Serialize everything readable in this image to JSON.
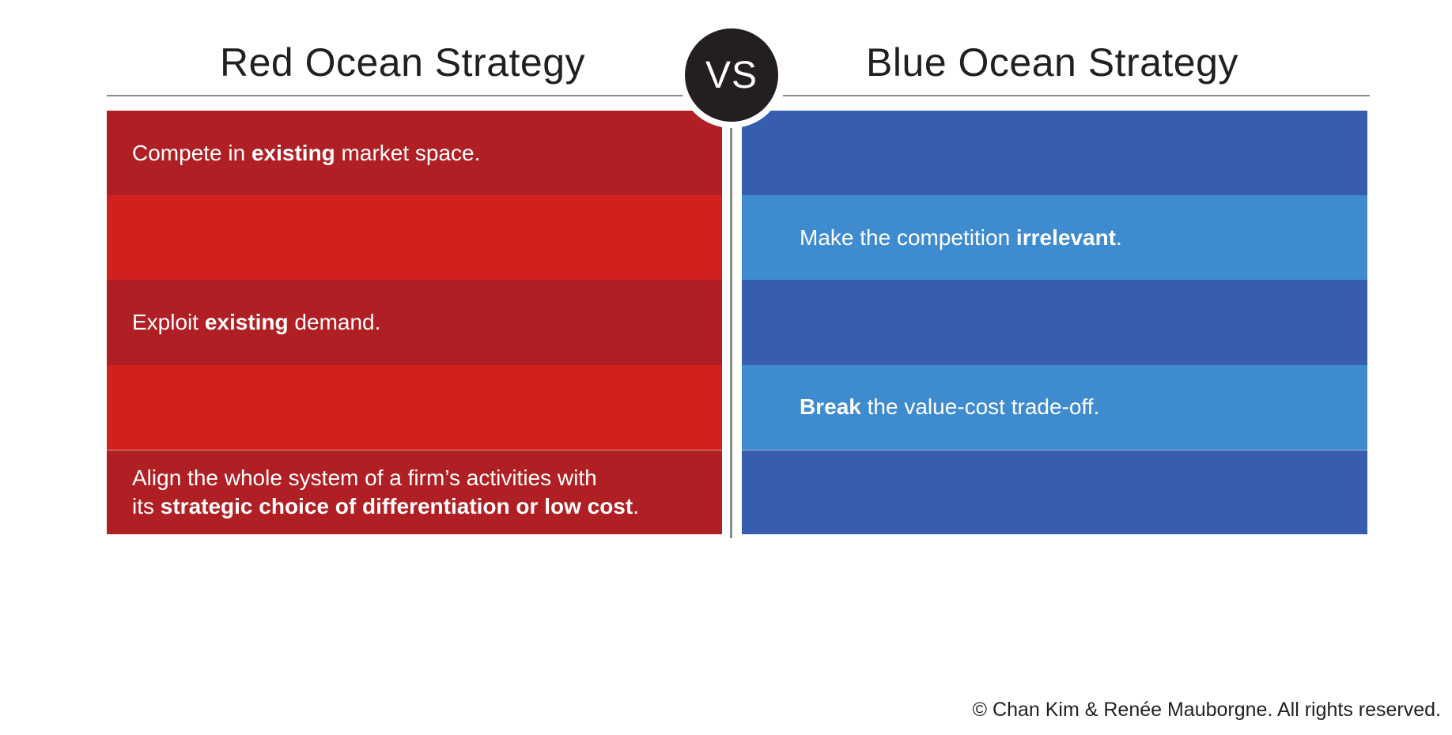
{
  "headings": {
    "red": "Red Ocean Strategy",
    "vs": "VS",
    "blue": "Blue Ocean Strategy"
  },
  "colors": {
    "red_dark": "#b01f23",
    "red_light": "#d41f1f",
    "blue_dark": "#375eae",
    "blue_light": "#3f8bcf",
    "vs_circle": "#231f20"
  },
  "red_rows": [
    {
      "pre": "Compete in ",
      "bold": "existing",
      "post": " market space.",
      "line2_pre": "",
      "line2_bold": "",
      "line2_post": ""
    },
    {
      "pre": "",
      "bold": "",
      "post": "",
      "line2_pre": "",
      "line2_bold": "",
      "line2_post": ""
    },
    {
      "pre": "Exploit ",
      "bold": "existing",
      "post": " demand.",
      "line2_pre": "",
      "line2_bold": "",
      "line2_post": ""
    },
    {
      "pre": "",
      "bold": "",
      "post": "",
      "line2_pre": "",
      "line2_bold": "",
      "line2_post": ""
    },
    {
      "pre": "Align the whole system of a firm’s activities with",
      "bold": "",
      "post": "",
      "line2_pre": "its ",
      "line2_bold": "strategic choice of differentiation or low cost",
      "line2_post": "."
    }
  ],
  "blue_rows": [
    {
      "pre": "",
      "bold": "",
      "post": ""
    },
    {
      "pre": "Make the competition ",
      "bold": "irrelevant",
      "post": "."
    },
    {
      "pre": "",
      "bold": "",
      "post": ""
    },
    {
      "pre": "",
      "bold": "Break",
      "post": " the value-cost trade-off."
    },
    {
      "pre": "",
      "bold": "",
      "post": ""
    }
  ],
  "footer": "© Chan Kim & Renée Mauborgne. All rights reserved."
}
